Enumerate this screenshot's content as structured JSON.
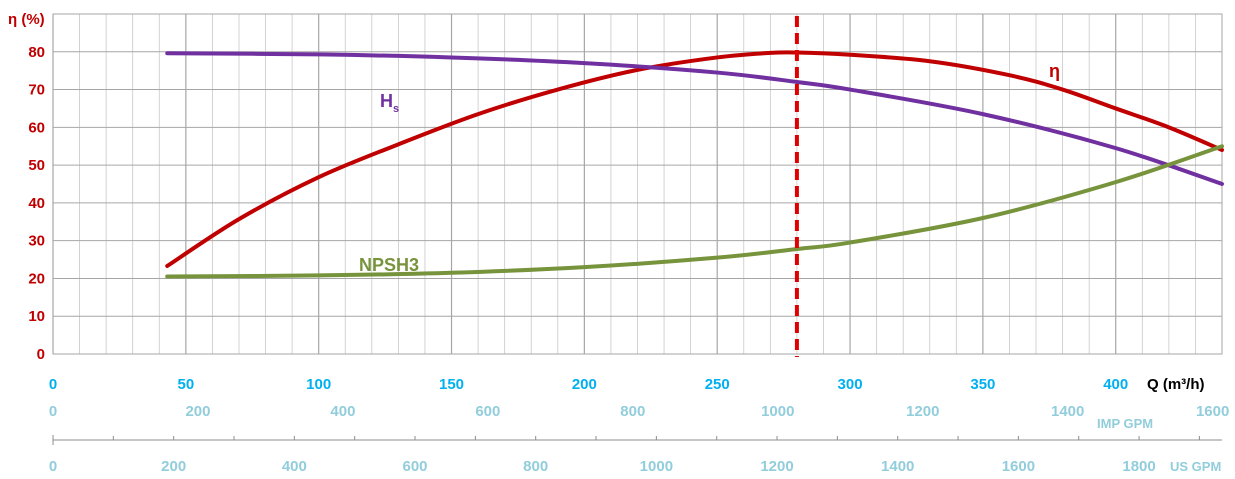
{
  "chart_data": {
    "type": "line",
    "ylabel": "η (%)",
    "xlabel": "Q (m³/h)",
    "xlim": [
      0,
      440
    ],
    "ylim": [
      0,
      90
    ],
    "y_ticks": [
      0,
      10,
      20,
      30,
      40,
      50,
      60,
      70,
      80
    ],
    "x_ticks": [
      0,
      50,
      100,
      150,
      200,
      250,
      300,
      350,
      400
    ],
    "grid": true,
    "imp_gpm": {
      "unit": "IMP GPM",
      "ticks": [
        0,
        200,
        400,
        600,
        800,
        1000,
        1200,
        1400,
        1600
      ],
      "m3h_per_unit": 0.2728
    },
    "us_gpm": {
      "unit": "US GPM",
      "ticks": [
        0,
        200,
        400,
        600,
        800,
        1000,
        1200,
        1400,
        1600,
        1800
      ],
      "m3h_per_unit": 0.2271
    },
    "design_point": {
      "x": 280
    },
    "series": [
      {
        "name": "η",
        "color": "#c00000",
        "x": [
          43,
          70,
          100,
          130,
          160,
          190,
          220,
          250,
          270,
          280,
          300,
          330,
          360,
          380,
          400,
          420,
          440
        ],
        "y": [
          23.3,
          35.7,
          46.8,
          55.5,
          63.5,
          70.0,
          75.2,
          78.5,
          79.7,
          79.8,
          79.2,
          77.5,
          73.8,
          70.0,
          65.0,
          60.0,
          54.0
        ]
      },
      {
        "name": "Hs",
        "color": "#7030a0",
        "x": [
          43,
          100,
          150,
          200,
          250,
          280,
          300,
          350,
          400,
          440
        ],
        "y": [
          79.6,
          79.3,
          78.5,
          77.0,
          74.5,
          72.0,
          70.0,
          63.5,
          54.5,
          45.0
        ]
      },
      {
        "name": "NPSH3",
        "color": "#77933c",
        "x": [
          43,
          100,
          150,
          200,
          250,
          280,
          300,
          350,
          400,
          440
        ],
        "y": [
          20.5,
          20.8,
          21.5,
          23.0,
          25.5,
          27.8,
          29.5,
          36.0,
          45.5,
          55.0
        ]
      }
    ],
    "labels": {
      "eta": "η",
      "hs_main": "H",
      "hs_sub": "s",
      "npsh": "NPSH3"
    },
    "colors": {
      "grid": "#c8c8c8",
      "y_tick": "#c00000",
      "x_tick": "#00b0f0",
      "gpm_tick": "#92cddc",
      "axis_label": "#000000"
    }
  }
}
